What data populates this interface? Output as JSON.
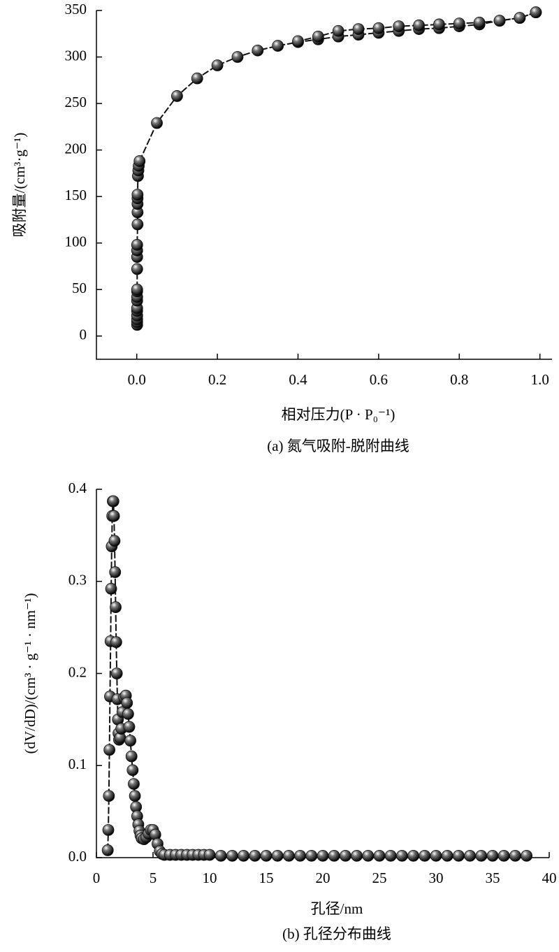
{
  "chart_data": [
    {
      "type": "scatter-line",
      "caption": "(a) 氮气吸附-脱附曲线",
      "x_label": "相对压力(P · P₀⁻¹)",
      "y_label": "吸附量/(cm³·g⁻¹)",
      "xlim": [
        -0.1,
        1.03
      ],
      "ylim": [
        -25,
        350
      ],
      "xticks": [
        {
          "value": 0,
          "label": "0.0"
        },
        {
          "value": 0.2,
          "label": "0.2"
        },
        {
          "value": 0.4,
          "label": "0.4"
        },
        {
          "value": 0.6,
          "label": "0.6"
        },
        {
          "value": 0.8,
          "label": "0.8"
        },
        {
          "value": 1,
          "label": "1.0"
        }
      ],
      "yticks": [
        0,
        50,
        100,
        150,
        200,
        250,
        300,
        350
      ],
      "series": [
        {
          "color": "#111111",
          "x": [
            0.001,
            0.001,
            0.001,
            0.001,
            0.001,
            0.001,
            0.001,
            0.001,
            0.001,
            0.001,
            0.001,
            0.001,
            0.001,
            0.001,
            0.002,
            0.002,
            0.002,
            0.002,
            0.002,
            0.003,
            0.004,
            0.005,
            0.007,
            0.05,
            0.1,
            0.15,
            0.2,
            0.25,
            0.3,
            0.35,
            0.4,
            0.45,
            0.5,
            0.55,
            0.6,
            0.65,
            0.7,
            0.75,
            0.8,
            0.85,
            0.9,
            0.95,
            0.99
          ],
          "values": [
            12,
            15,
            18,
            22,
            27,
            30,
            38,
            42,
            48,
            50,
            72,
            85,
            92,
            98,
            120,
            133,
            142,
            148,
            152,
            172,
            178,
            183,
            188,
            229,
            258,
            277,
            291,
            300,
            307,
            312,
            316,
            319,
            322,
            324,
            326,
            328,
            330,
            331,
            333,
            335,
            339,
            342,
            348
          ]
        },
        {
          "color": "#111111",
          "x": [
            0.99,
            0.95,
            0.9,
            0.85,
            0.8,
            0.75,
            0.7,
            0.65,
            0.6,
            0.55,
            0.5,
            0.45,
            0.4
          ],
          "values": [
            348,
            342,
            339,
            337,
            336,
            335,
            334,
            333,
            331,
            330,
            328,
            322,
            317
          ]
        }
      ]
    },
    {
      "type": "scatter-line",
      "caption": "(b) 孔径分布曲线",
      "x_label": "孔径/nm",
      "y_label": "(dV/dD)/(cm³ · g⁻¹ · nm⁻¹)",
      "xlim": [
        0,
        40
      ],
      "ylim": [
        0,
        0.4
      ],
      "xticks": [
        0,
        5,
        10,
        15,
        20,
        25,
        30,
        35,
        40
      ],
      "yticks": [
        {
          "value": 0,
          "label": "0.0"
        },
        {
          "value": 0.1,
          "label": "0.1"
        },
        {
          "value": 0.2,
          "label": "0.2"
        },
        {
          "value": 0.3,
          "label": "0.3"
        },
        {
          "value": 0.4,
          "label": "0.4"
        }
      ],
      "series": [
        {
          "color": "#111111",
          "x": [
            1.0,
            1.05,
            1.1,
            1.15,
            1.2,
            1.25,
            1.3,
            1.35,
            1.4,
            1.45,
            1.5,
            1.55,
            1.6,
            1.65,
            1.7,
            1.75,
            1.8,
            1.85,
            1.9,
            1.95,
            2.0,
            2.1,
            2.2,
            2.3,
            2.45,
            2.6,
            2.7,
            2.8,
            2.9,
            3.0,
            3.1,
            3.2,
            3.3,
            3.4,
            3.5,
            3.6,
            3.7,
            3.8,
            3.9,
            4.0,
            4.2,
            4.4,
            4.6,
            4.8,
            5.0,
            5.2,
            5.4,
            5.6,
            5.8,
            6.0,
            6.5,
            7,
            7.5,
            8,
            8.5,
            9,
            9.5,
            10,
            11,
            12,
            13,
            14,
            15,
            16,
            17,
            18,
            19,
            20,
            21,
            22,
            23,
            24,
            25,
            26,
            27,
            28,
            29,
            30,
            31,
            32,
            33,
            34,
            35,
            36,
            37,
            38
          ],
          "values": [
            0.008,
            0.03,
            0.067,
            0.117,
            0.175,
            0.235,
            0.292,
            0.338,
            0.371,
            0.387,
            0.387,
            0.371,
            0.344,
            0.31,
            0.272,
            0.234,
            0.2,
            0.172,
            0.15,
            0.135,
            0.128,
            0.13,
            0.14,
            0.158,
            0.174,
            0.176,
            0.168,
            0.156,
            0.142,
            0.127,
            0.11,
            0.095,
            0.08,
            0.067,
            0.055,
            0.045,
            0.036,
            0.029,
            0.024,
            0.021,
            0.02,
            0.022,
            0.026,
            0.03,
            0.03,
            0.025,
            0.015,
            0.007,
            0.004,
            0.003,
            0.003,
            0.003,
            0.003,
            0.003,
            0.003,
            0.003,
            0.003,
            0.003,
            0.002,
            0.002,
            0.002,
            0.002,
            0.002,
            0.002,
            0.002,
            0.002,
            0.002,
            0.002,
            0.002,
            0.002,
            0.002,
            0.002,
            0.002,
            0.002,
            0.002,
            0.002,
            0.002,
            0.002,
            0.002,
            0.002,
            0.002,
            0.002,
            0.002,
            0.002,
            0.002,
            0.002
          ]
        }
      ]
    }
  ]
}
